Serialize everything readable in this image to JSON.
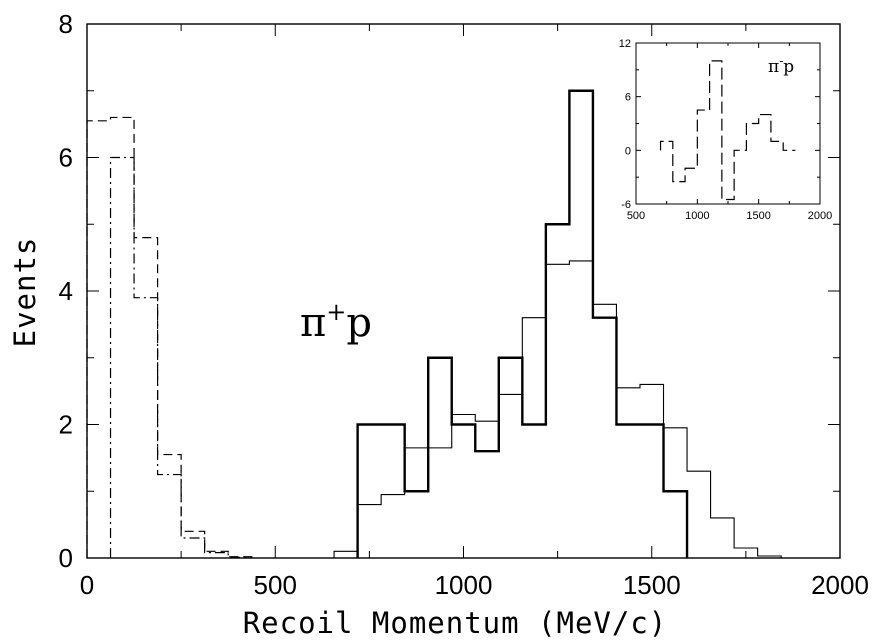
{
  "chart_data": [
    {
      "type": "histogram",
      "xlabel": "Recoil Momentum (MeV/c)",
      "ylabel": "Events",
      "xlim": [
        0,
        2000
      ],
      "ylim": [
        0,
        8
      ],
      "x_ticks": [
        0,
        500,
        1000,
        1500,
        2000
      ],
      "y_ticks": [
        0,
        2,
        4,
        6,
        8
      ],
      "annotation": {
        "base": "π",
        "sup": "+",
        "rest": "p"
      },
      "bin_width": 62.5,
      "series": [
        {
          "style": "thick-solid",
          "color": "#000000",
          "x": [
            718.75,
            781.25,
            843.75,
            906.25,
            968.75,
            1031.25,
            1093.75,
            1156.25,
            1218.75,
            1281.25,
            1343.75,
            1406.25,
            1468.75,
            1531.25
          ],
          "y": [
            2,
            2,
            1,
            3,
            2,
            1.6,
            3,
            2,
            5,
            7,
            3.6,
            2,
            2,
            1
          ]
        },
        {
          "style": "thin-solid",
          "color": "#000000",
          "x": [
            656.25,
            718.75,
            781.25,
            843.75,
            906.25,
            968.75,
            1031.25,
            1093.75,
            1156.25,
            1218.75,
            1281.25,
            1343.75,
            1406.25,
            1468.75,
            1531.25,
            1593.75,
            1656.25,
            1718.75,
            1781.25
          ],
          "y": [
            0.1,
            0.8,
            0.95,
            1.65,
            1.65,
            2.15,
            2.05,
            2.45,
            3.6,
            4.4,
            4.45,
            3.8,
            2.55,
            2.6,
            1.95,
            1.3,
            0.6,
            0.15,
            0.03
          ]
        },
        {
          "style": "dashed",
          "color": "#000000",
          "x": [
            0,
            62.5,
            125,
            187.5,
            250,
            312.5,
            375
          ],
          "y": [
            6.55,
            6.6,
            4.8,
            1.55,
            0.4,
            0.1,
            0.02
          ]
        },
        {
          "style": "dash-dot",
          "color": "#000000",
          "x": [
            62.5,
            125,
            187.5,
            250,
            312.5,
            375
          ],
          "y": [
            6.0,
            3.9,
            1.25,
            0.3,
            0.08,
            0.01
          ]
        }
      ]
    },
    {
      "type": "histogram",
      "inset": true,
      "xlim": [
        500,
        2000
      ],
      "ylim": [
        -6,
        12
      ],
      "x_ticks": [
        500,
        1000,
        1500,
        2000
      ],
      "y_ticks": [
        -6,
        0,
        6,
        12
      ],
      "annotation": {
        "base": "π",
        "sup": "-",
        "rest": "p"
      },
      "bin_width": 100,
      "series": [
        {
          "style": "long-dash",
          "color": "#000000",
          "x": [
            700,
            800,
            900,
            1000,
            1100,
            1200,
            1300,
            1400,
            1500,
            1600,
            1700
          ],
          "y": [
            1,
            -3.5,
            -2,
            4.5,
            10,
            -5.5,
            0,
            3,
            4,
            1,
            0
          ]
        }
      ]
    }
  ]
}
